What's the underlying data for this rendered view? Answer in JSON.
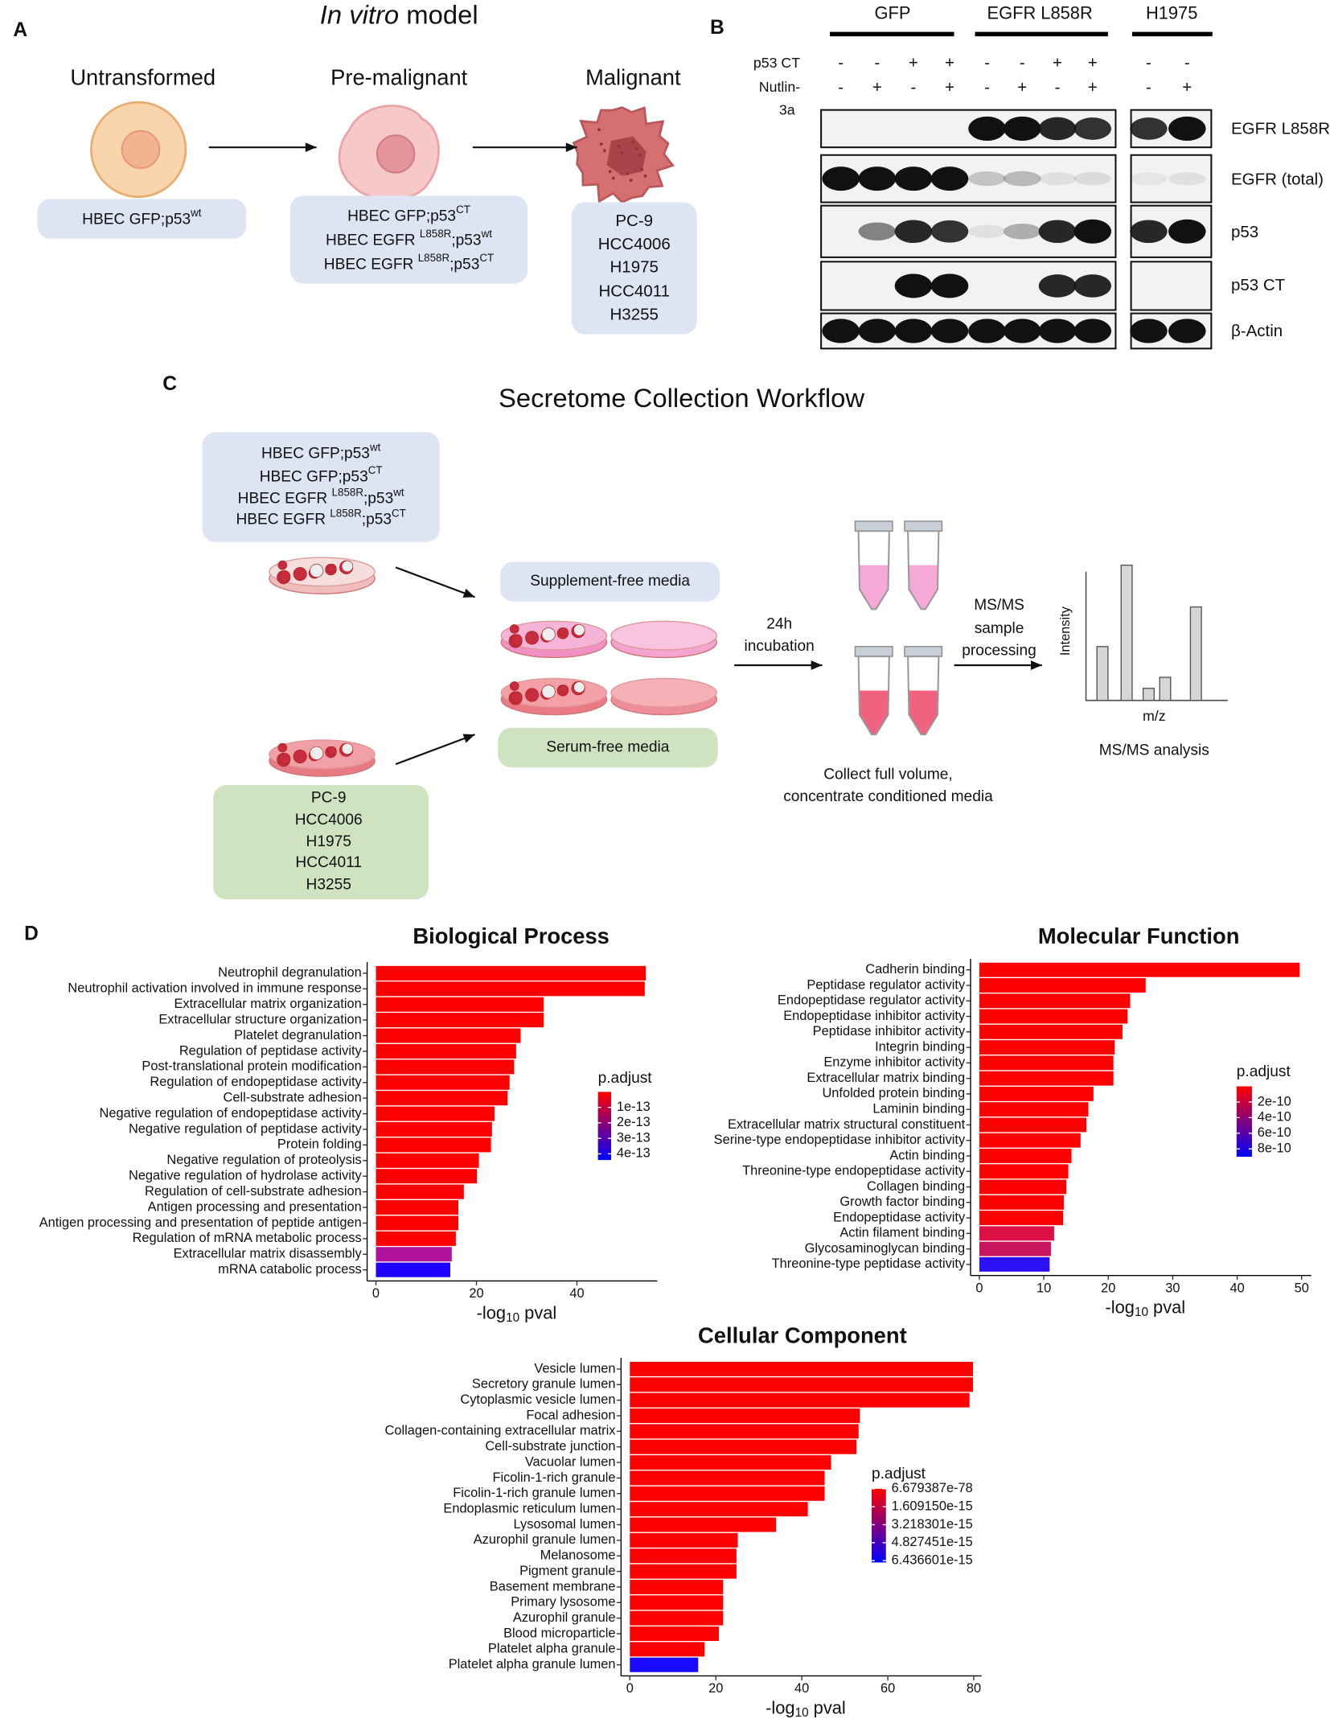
{
  "panel_labels": [
    "A",
    "B",
    "C",
    "D"
  ],
  "panel_a": {
    "title_parts": [
      "In vitro",
      " model"
    ],
    "stages": [
      {
        "name": "Untransformed",
        "lines": [
          [
            "HBEC GFP;p53",
            "wt"
          ]
        ]
      },
      {
        "name": "Pre-malignant",
        "lines": [
          [
            "HBEC GFP;p53",
            "CT"
          ],
          [
            "HBEC EGFR ",
            "L858R",
            ";p53",
            "wt"
          ],
          [
            "HBEC EGFR ",
            "L858R",
            ";p53",
            "CT"
          ]
        ]
      },
      {
        "name": "Malignant",
        "lines": [
          [
            "PC-9"
          ],
          [
            "HCC4006"
          ],
          [
            "H1975"
          ],
          [
            "HCC4011"
          ],
          [
            "H3255"
          ]
        ]
      }
    ]
  },
  "panel_b": {
    "groups": [
      "GFP",
      "EGFR L858R",
      "H1975"
    ],
    "row_label_p53ct": "p53 CT",
    "row_label_nutlin": [
      "Nutlin-",
      "3a"
    ],
    "p53ct": [
      "-",
      "-",
      "+",
      "+",
      "-",
      "-",
      "+",
      "+",
      "-",
      "-"
    ],
    "nutlin": [
      "-",
      "+",
      "-",
      "+",
      "-",
      "+",
      "-",
      "+",
      "-",
      "+"
    ],
    "blots": [
      "EGFR L858R",
      "EGFR (total)",
      "p53",
      "p53 CT",
      "β-Actin"
    ]
  },
  "panel_c": {
    "title": "Secretome Collection Workflow",
    "hbec_lines": [
      [
        "HBEC GFP;p53",
        "wt"
      ],
      [
        "HBEC GFP;p53",
        "CT"
      ],
      [
        "HBEC EGFR ",
        "L858R",
        ";p53",
        "wt"
      ],
      [
        "HBEC EGFR ",
        "L858R",
        ";p53",
        "CT"
      ]
    ],
    "cancer_lines": [
      "PC-9",
      "HCC4006",
      "H1975",
      "HCC4011",
      "H3255"
    ],
    "supplement_free": "Supplement-free media",
    "serum_free": "Serum-free media",
    "incubation": [
      "24h",
      "incubation"
    ],
    "processing": [
      "MS/MS",
      "sample",
      "processing"
    ],
    "collect": [
      "Collect full volume,",
      "concentrate conditioned media"
    ],
    "intensity": "Intensity",
    "mz": "m/z",
    "analysis": "MS/MS analysis"
  },
  "chart_data": [
    {
      "type": "barh",
      "title": "Biological Process",
      "categories": [
        "Neutrophil degranulation",
        "Neutrophil activation involved in immune response",
        "Extracellular matrix organization",
        "Extracellular structure organization",
        "Platelet degranulation",
        "Regulation of peptidase activity",
        "Post-translational protein modification",
        "Regulation of endopeptidase activity",
        "Cell-substrate adhesion",
        "Negative regulation of endopeptidase activity",
        "Negative regulation of peptidase activity",
        "Protein folding",
        "Negative regulation of proteolysis",
        "Negative regulation of hydrolase activity",
        "Regulation of cell-substrate adhesion",
        "Antigen processing and presentation",
        "Antigen processing and presentation of peptide antigen",
        "Regulation of mRNA metabolic process",
        "Extracellular matrix disassembly",
        "mRNA catabolic process"
      ],
      "values": [
        53.7,
        53.5,
        33.4,
        33.4,
        28.8,
        27.9,
        27.5,
        26.6,
        26.2,
        23.6,
        23.1,
        22.9,
        20.5,
        20.1,
        17.5,
        16.4,
        16.4,
        15.9,
        15.1,
        14.8
      ],
      "colors": [
        "#ff0000",
        "#ff0000",
        "#ff0000",
        "#ff0000",
        "#ff0000",
        "#ff0000",
        "#ff0000",
        "#ff0000",
        "#ff0000",
        "#ff0000",
        "#ff0000",
        "#ff0000",
        "#ff0000",
        "#ff0000",
        "#ff0000",
        "#ff0000",
        "#ff0000",
        "#ff0000",
        "#b0109a",
        "#1f00ff"
      ],
      "xlim": [
        0,
        56
      ],
      "xticks": [
        0,
        20,
        40
      ],
      "xlabel_parts": [
        "-log",
        "10",
        " pval"
      ],
      "colorbar": {
        "title": "p.adjust",
        "low": "#ff0000",
        "high": "#0000ff",
        "clim": [
          0,
          4.4e-13
        ],
        "ticks": [
          {
            "value": 1e-13,
            "label": "1e-13"
          },
          {
            "value": 2e-13,
            "label": "2e-13"
          },
          {
            "value": 3e-13,
            "label": "3e-13"
          },
          {
            "value": 4e-13,
            "label": "4e-13"
          }
        ]
      }
    },
    {
      "type": "barh",
      "title": "Molecular Function",
      "categories": [
        "Cadherin binding",
        "Peptidase regulator activity",
        "Endopeptidase regulator activity",
        "Endopeptidase inhibitor activity",
        "Peptidase inhibitor activity",
        "Integrin binding",
        "Enzyme inhibitor activity",
        "Extracellular matrix binding",
        "Unfolded protein binding",
        "Laminin binding",
        "Extracellular matrix structural constituent",
        "Serine-type endopeptidase inhibitor activity",
        "Actin binding",
        "Threonine-type endopeptidase activity",
        "Collagen binding",
        "Growth factor binding",
        "Endopeptidase activity",
        "Actin filament binding",
        "Glycosaminoglycan binding",
        "Threonine-type peptidase activity"
      ],
      "values": [
        49.7,
        25.8,
        23.4,
        23.0,
        22.2,
        21.0,
        20.8,
        20.8,
        17.7,
        16.9,
        16.6,
        15.7,
        14.3,
        13.8,
        13.5,
        13.1,
        13.0,
        11.6,
        11.1,
        10.9
      ],
      "colors": [
        "#ff0000",
        "#ff0000",
        "#ff0000",
        "#ff0000",
        "#ff0000",
        "#ff0000",
        "#ff0000",
        "#ff0000",
        "#ff0000",
        "#ff0000",
        "#ff0000",
        "#ff0000",
        "#ff0000",
        "#ff0000",
        "#ff0000",
        "#ff0000",
        "#ff0000",
        "#dd1045",
        "#c8155e",
        "#2b10f5"
      ],
      "xlim": [
        0,
        51.5
      ],
      "xticks": [
        0,
        10,
        20,
        30,
        40,
        50
      ],
      "xlabel_parts": [
        "-log",
        "10",
        " pval"
      ],
      "colorbar": {
        "title": "p.adjust",
        "low": "#ff0000",
        "high": "#0000ff",
        "clim": [
          0,
          9e-10
        ],
        "ticks": [
          {
            "value": 2e-10,
            "label": "2e-10"
          },
          {
            "value": 4e-10,
            "label": "4e-10"
          },
          {
            "value": 6e-10,
            "label": "6e-10"
          },
          {
            "value": 8e-10,
            "label": "8e-10"
          }
        ]
      }
    },
    {
      "type": "barh",
      "title": "Cellular Component",
      "categories": [
        "Vesicle lumen",
        "Secretory granule lumen",
        "Cytoplasmic vesicle lumen",
        "Focal adhesion",
        "Collagen-containing extracellular matrix",
        "Cell-substrate junction",
        "Vacuolar lumen",
        "Ficolin-1-rich granule",
        "Ficolin-1-rich granule lumen",
        "Endoplasmic reticulum lumen",
        "Lysosomal lumen",
        "Azurophil granule lumen",
        "Melanosome",
        "Pigment granule",
        "Basement membrane",
        "Primary lysosome",
        "Azurophil granule",
        "Blood microparticle",
        "Platelet alpha granule",
        "Platelet alpha granule lumen"
      ],
      "values": [
        79.8,
        79.8,
        79.0,
        53.5,
        53.2,
        52.7,
        46.8,
        45.3,
        45.3,
        41.4,
        34.0,
        25.1,
        24.8,
        24.8,
        21.7,
        21.7,
        21.7,
        20.7,
        17.4,
        15.9
      ],
      "colors": [
        "#ff0000",
        "#ff0000",
        "#ff0000",
        "#ff0000",
        "#ff0000",
        "#ff0000",
        "#ff0000",
        "#ff0000",
        "#ff0000",
        "#ff0000",
        "#ff0000",
        "#ff0000",
        "#ff0000",
        "#ff0000",
        "#ff0000",
        "#ff0000",
        "#ff0000",
        "#ff0000",
        "#ff0000",
        "#1a0aff"
      ],
      "xlim": [
        0,
        81.8
      ],
      "xticks": [
        0,
        20,
        40,
        60,
        80
      ],
      "xlabel_parts": [
        "-log",
        "10",
        " pval"
      ],
      "colorbar": {
        "title": "p.adjust",
        "low": "#ff0000",
        "high": "#0000ff",
        "clim": [
          0,
          6.6e-15
        ],
        "ticks": [
          {
            "value": 6.679387e-78,
            "label": "6.679387e-78"
          },
          {
            "value": 1.60915e-15,
            "label": "1.609150e-15"
          },
          {
            "value": 3.218301e-15,
            "label": "3.218301e-15"
          },
          {
            "value": 4.827451e-15,
            "label": "4.827451e-15"
          },
          {
            "value": 6.436601e-15,
            "label": "6.436601e-15"
          }
        ]
      }
    }
  ]
}
